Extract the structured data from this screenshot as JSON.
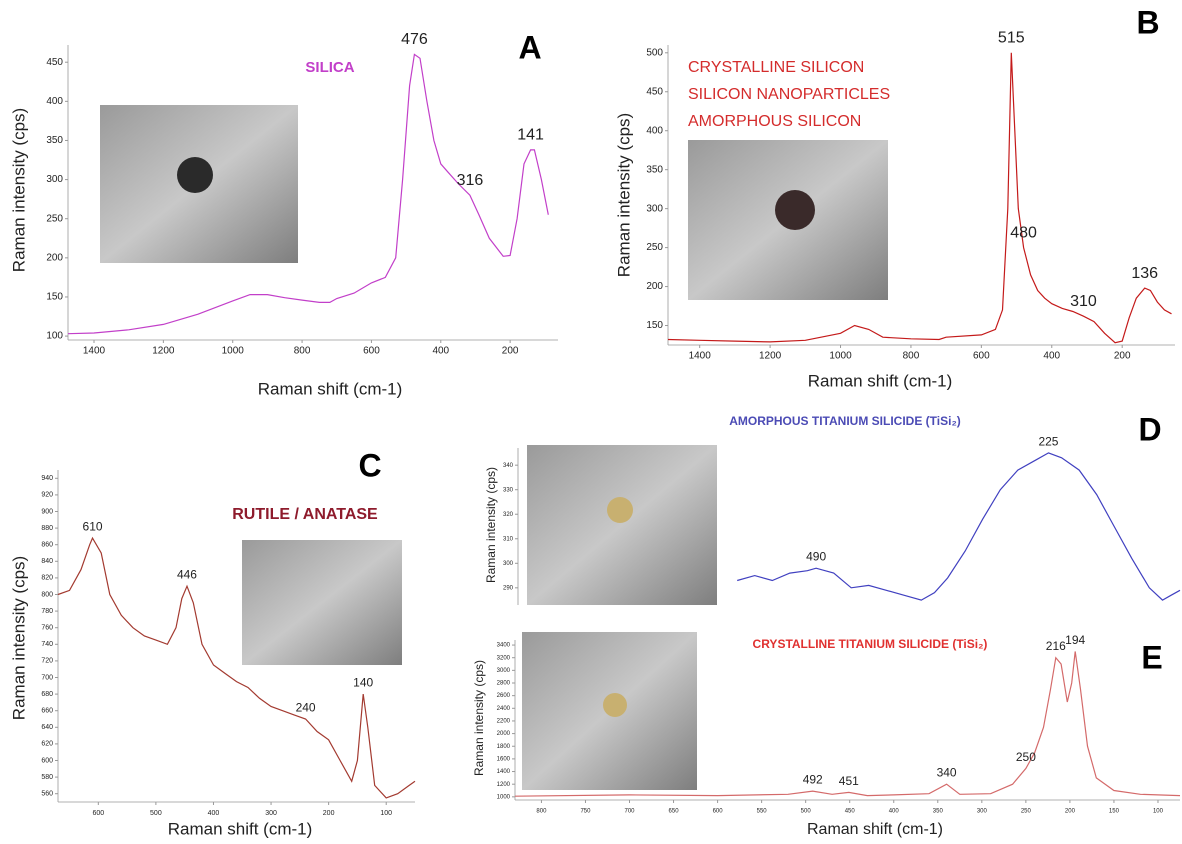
{
  "chart_data": [
    {
      "type": "line",
      "panel": "A",
      "title": "SILICA",
      "title_color": "#c23fc9",
      "x_label": "Raman shift (cm-1)",
      "y_label": "Raman intensity (cps)",
      "color": "#c23fc9",
      "xlim": [
        1475,
        62
      ],
      "xticks": [
        1400,
        1200,
        1000,
        800,
        600,
        400,
        200
      ],
      "ylim": [
        95,
        472
      ],
      "yticks": [
        100,
        150,
        200,
        250,
        300,
        350,
        400,
        450
      ],
      "x": [
        1475,
        1400,
        1300,
        1200,
        1100,
        1000,
        950,
        900,
        850,
        800,
        750,
        720,
        700,
        650,
        600,
        560,
        530,
        510,
        490,
        476,
        460,
        440,
        420,
        400,
        380,
        350,
        316,
        290,
        260,
        220,
        200,
        180,
        160,
        141,
        130,
        110,
        90
      ],
      "values": [
        103,
        104,
        108,
        115,
        128,
        145,
        153,
        153,
        149,
        146,
        143,
        143,
        148,
        155,
        168,
        175,
        200,
        300,
        420,
        460,
        455,
        400,
        350,
        320,
        310,
        295,
        280,
        255,
        225,
        202,
        203,
        250,
        320,
        338,
        338,
        300,
        255
      ],
      "peak_labels": [
        476,
        316,
        141
      ]
    },
    {
      "type": "line",
      "panel": "B",
      "title_lines": [
        "CRYSTALLINE SILICON",
        "SILICON NANOPARTICLES",
        "AMORPHOUS SILICON"
      ],
      "title_color": "#d42c2c",
      "x_label": "Raman shift (cm-1)",
      "y_label": "Raman intensity (cps)",
      "color": "#c41a1a",
      "xlim": [
        1490,
        50
      ],
      "xticks": [
        1400,
        1200,
        1000,
        800,
        600,
        400,
        200
      ],
      "ylim": [
        125,
        510
      ],
      "yticks": [
        150,
        200,
        250,
        300,
        350,
        400,
        450,
        500
      ],
      "x": [
        1490,
        1400,
        1300,
        1200,
        1100,
        1000,
        960,
        920,
        880,
        800,
        720,
        700,
        600,
        560,
        540,
        525,
        515,
        505,
        495,
        480,
        460,
        440,
        420,
        400,
        370,
        340,
        310,
        280,
        250,
        220,
        200,
        180,
        160,
        136,
        120,
        100,
        80,
        60
      ],
      "values": [
        132,
        131,
        130,
        129,
        131,
        140,
        150,
        145,
        135,
        133,
        132,
        135,
        138,
        145,
        170,
        300,
        500,
        400,
        300,
        250,
        215,
        195,
        185,
        178,
        172,
        168,
        162,
        155,
        140,
        128,
        130,
        160,
        185,
        198,
        195,
        180,
        170,
        165
      ],
      "peak_labels": [
        515,
        480,
        310,
        136
      ]
    },
    {
      "type": "line",
      "panel": "C",
      "title": "RUTILE / ANATASE",
      "title_color": "#8e1b2c",
      "x_label": "Raman shift (cm-1)",
      "y_label": "Raman intensity (cps)",
      "color": "#a33a30",
      "xlim": [
        670,
        50
      ],
      "xticks": [
        600,
        500,
        400,
        300,
        200,
        100
      ],
      "ylim": [
        550,
        950
      ],
      "yticks": [
        560,
        580,
        600,
        620,
        640,
        660,
        680,
        700,
        720,
        740,
        760,
        780,
        800,
        820,
        840,
        860,
        880,
        900,
        920,
        940
      ],
      "x": [
        670,
        650,
        630,
        615,
        610,
        595,
        580,
        560,
        540,
        520,
        500,
        480,
        465,
        455,
        446,
        435,
        420,
        400,
        380,
        360,
        340,
        320,
        300,
        280,
        260,
        240,
        220,
        200,
        180,
        160,
        150,
        140,
        132,
        120,
        100,
        80,
        60,
        50
      ],
      "values": [
        800,
        805,
        830,
        860,
        868,
        850,
        800,
        775,
        760,
        750,
        745,
        740,
        760,
        795,
        810,
        790,
        740,
        715,
        705,
        695,
        688,
        675,
        665,
        660,
        655,
        650,
        635,
        625,
        600,
        575,
        600,
        680,
        640,
        570,
        555,
        560,
        570,
        575
      ],
      "peak_labels": [
        610,
        446,
        240,
        140
      ]
    },
    {
      "type": "line",
      "panel": "D",
      "title": "AMORPHOUS TITANIUM SILICIDE (TiSi₂)",
      "title_color": "#4b4bb5",
      "y_label": "Raman intensity (cps)",
      "color": "#4040c0",
      "xlim": [
        830,
        75
      ],
      "ylim": [
        283,
        347
      ],
      "yticks": [
        290,
        300,
        310,
        320,
        330,
        340
      ],
      "x": [
        580,
        560,
        540,
        520,
        500,
        490,
        470,
        450,
        430,
        410,
        390,
        370,
        355,
        340,
        320,
        300,
        280,
        260,
        240,
        225,
        210,
        190,
        170,
        150,
        130,
        110,
        95,
        85,
        75
      ],
      "values": [
        293,
        295,
        293,
        296,
        297,
        298,
        296,
        290,
        291,
        289,
        287,
        285,
        288,
        294,
        305,
        318,
        330,
        338,
        342,
        345,
        343,
        338,
        328,
        315,
        302,
        290,
        285,
        287,
        289
      ],
      "peak_labels": [
        490,
        225
      ]
    },
    {
      "type": "line",
      "panel": "E",
      "title": "CRYSTALLINE TITANIUM SILICIDE (TiSi₂)",
      "title_color": "#e0302f",
      "x_label": "Raman shift (cm-1)",
      "y_label": "Raman intensity (cps)",
      "color": "#d46a6a",
      "xlim": [
        830,
        75
      ],
      "xticks": [
        800,
        750,
        700,
        650,
        600,
        550,
        500,
        450,
        400,
        350,
        300,
        250,
        200,
        150,
        100
      ],
      "ylim": [
        950,
        3480
      ],
      "yticks": [
        1000,
        1200,
        1400,
        1600,
        1800,
        2000,
        2200,
        2400,
        2600,
        2800,
        3000,
        3200,
        3400
      ],
      "x": [
        830,
        700,
        600,
        520,
        492,
        470,
        451,
        430,
        400,
        360,
        340,
        325,
        290,
        265,
        250,
        240,
        230,
        222,
        216,
        210,
        203,
        198,
        194,
        188,
        180,
        170,
        150,
        120,
        75
      ],
      "values": [
        1010,
        1030,
        1020,
        1040,
        1090,
        1040,
        1070,
        1020,
        1030,
        1050,
        1200,
        1040,
        1050,
        1200,
        1450,
        1700,
        2100,
        2700,
        3200,
        3100,
        2500,
        2800,
        3300,
        2700,
        1800,
        1300,
        1100,
        1040,
        1020
      ],
      "peak_labels": [
        492,
        451,
        340,
        250,
        216,
        194
      ]
    }
  ]
}
